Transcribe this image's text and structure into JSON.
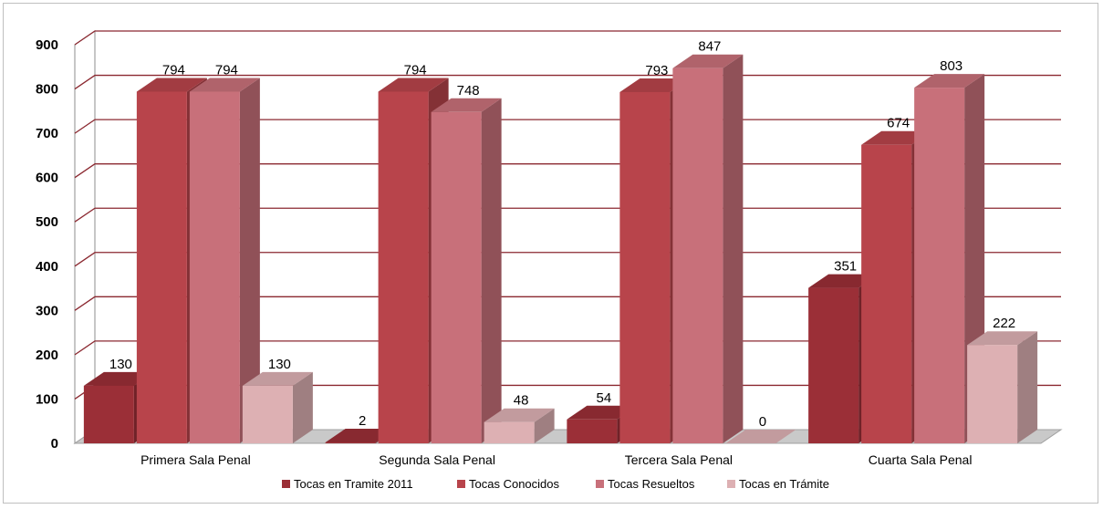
{
  "chart_data": {
    "type": "bar",
    "title": "",
    "xlabel": "",
    "ylabel": "",
    "ylim": [
      0,
      900
    ],
    "yticks": [
      0,
      100,
      200,
      300,
      400,
      500,
      600,
      700,
      800,
      900
    ],
    "grid": true,
    "legend_position": "bottom",
    "categories": [
      "Primera Sala Penal",
      "Segunda Sala Penal",
      "Tercera Sala Penal",
      "Cuarta Sala Penal"
    ],
    "series": [
      {
        "name": "Tocas en Tramite 2011",
        "values": [
          130,
          2,
          54,
          351
        ],
        "color": "#9b2f37"
      },
      {
        "name": "Tocas Conocidos",
        "values": [
          794,
          794,
          793,
          674
        ],
        "color": "#b8444b"
      },
      {
        "name": "Tocas Resueltos",
        "values": [
          794,
          748,
          847,
          803
        ],
        "color": "#c8707a"
      },
      {
        "name": "Tocas en Trámite",
        "values": [
          130,
          48,
          0,
          222
        ],
        "color": "#ddb0b3"
      }
    ]
  }
}
